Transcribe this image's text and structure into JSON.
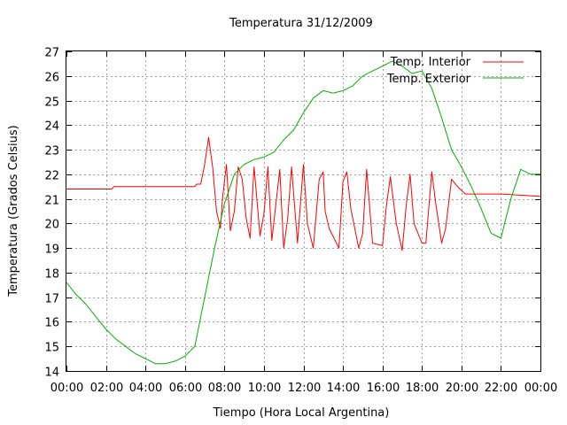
{
  "chart_data": {
    "type": "line",
    "title": "Temperatura 31/12/2009",
    "xlabel": "Tiempo (Hora Local Argentina)",
    "ylabel": "Temperatura (Grados Celsius)",
    "xlim": [
      0,
      24
    ],
    "ylim": [
      14,
      27
    ],
    "x_ticks": [
      "00:00",
      "02:00",
      "04:00",
      "06:00",
      "08:00",
      "10:00",
      "12:00",
      "14:00",
      "16:00",
      "18:00",
      "20:00",
      "22:00",
      "00:00"
    ],
    "y_ticks": [
      "14",
      "15",
      "16",
      "17",
      "18",
      "19",
      "20",
      "21",
      "22",
      "23",
      "24",
      "25",
      "26",
      "27"
    ],
    "grid": true,
    "legend_position": "top-right",
    "series": [
      {
        "name": "Temp. Interior",
        "color": "#ff0000",
        "x": [
          0,
          2.3,
          2.4,
          2.5,
          6.5,
          6.6,
          6.8,
          7.0,
          7.2,
          7.4,
          7.6,
          7.8,
          7.9,
          8.1,
          8.3,
          8.5,
          8.7,
          8.9,
          9.1,
          9.3,
          9.5,
          9.8,
          10.0,
          10.2,
          10.4,
          10.8,
          11.0,
          11.2,
          11.4,
          11.7,
          12.0,
          12.2,
          12.5,
          12.8,
          13.0,
          13.1,
          13.3,
          13.8,
          14.0,
          14.2,
          14.4,
          14.8,
          15.0,
          15.2,
          15.5,
          16.0,
          16.2,
          16.4,
          16.7,
          17.0,
          17.2,
          17.4,
          17.6,
          18.0,
          18.2,
          18.5,
          18.7,
          19.0,
          19.2,
          19.5,
          19.8,
          20.2,
          22.0,
          24.0
        ],
        "values": [
          21.4,
          21.4,
          21.5,
          21.5,
          21.5,
          21.6,
          21.6,
          22.4,
          23.5,
          22.3,
          20.5,
          19.8,
          21.0,
          22.4,
          19.7,
          20.5,
          22.3,
          21.8,
          20.2,
          19.4,
          22.3,
          19.5,
          20.4,
          22.3,
          19.3,
          22.2,
          19.0,
          20.2,
          22.3,
          19.2,
          22.4,
          20.0,
          19.0,
          21.8,
          22.1,
          20.5,
          19.8,
          19.0,
          21.7,
          22.1,
          20.6,
          19.0,
          19.6,
          22.2,
          19.2,
          19.1,
          20.7,
          21.9,
          20.0,
          18.9,
          20.7,
          22.0,
          20.0,
          19.2,
          19.2,
          22.1,
          20.8,
          19.2,
          19.8,
          21.8,
          21.5,
          21.2,
          21.2,
          21.1
        ]
      },
      {
        "name": "Temp. Exterior",
        "color": "#00b000",
        "x": [
          0,
          0.5,
          1.0,
          1.5,
          2.0,
          2.5,
          3.0,
          3.5,
          4.0,
          4.5,
          5.0,
          5.5,
          6.0,
          6.5,
          7.0,
          7.5,
          8.0,
          8.5,
          9.0,
          9.5,
          10.0,
          10.5,
          11.0,
          11.5,
          12.0,
          12.5,
          13.0,
          13.5,
          14.0,
          14.5,
          15.0,
          15.5,
          16.0,
          16.5,
          17.0,
          17.5,
          18.0,
          18.5,
          19.0,
          19.5,
          20.0,
          20.5,
          21.0,
          21.5,
          22.0,
          22.5,
          23.0,
          23.5,
          24.0
        ],
        "values": [
          17.6,
          17.1,
          16.7,
          16.2,
          15.7,
          15.3,
          15.0,
          14.7,
          14.5,
          14.3,
          14.3,
          14.4,
          14.6,
          15.0,
          17.0,
          19.0,
          20.8,
          22.0,
          22.4,
          22.6,
          22.7,
          22.9,
          23.4,
          23.8,
          24.5,
          25.1,
          25.4,
          25.3,
          25.4,
          25.6,
          26.0,
          26.2,
          26.4,
          26.6,
          26.4,
          26.1,
          26.2,
          25.5,
          24.3,
          23.0,
          22.3,
          21.5,
          20.6,
          19.6,
          19.4,
          21.0,
          22.2,
          22.0,
          22.0
        ]
      }
    ]
  }
}
